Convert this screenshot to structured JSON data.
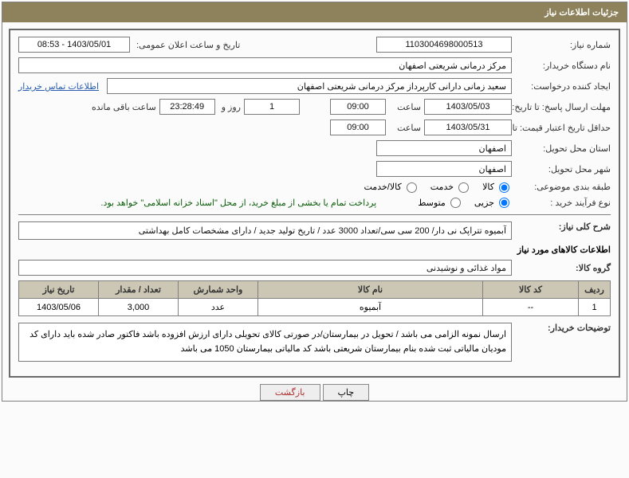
{
  "header": {
    "title": "جزئیات اطلاعات نیاز"
  },
  "fields": {
    "need_number_label": "شماره نیاز:",
    "need_number": "1103004698000513",
    "announce_label": "تاریخ و ساعت اعلان عمومی:",
    "announce_value": "1403/05/01 - 08:53",
    "buyer_org_label": "نام دستگاه خریدار:",
    "buyer_org": "مرکز درمانی شریعتی اصفهان",
    "requester_label": "ایجاد کننده درخواست:",
    "requester": "سعید زمانی دارانی کارپرداز مرکز درمانی شریعتی اصفهان",
    "contact_link": "اطلاعات تماس خریدار",
    "deadline_reply_label": "مهلت ارسال پاسخ: تا تاریخ:",
    "deadline_reply_date": "1403/05/03",
    "time_label": "ساعت",
    "deadline_reply_time": "09:00",
    "days_value": "1",
    "days_and_label": "روز و",
    "countdown": "23:28:49",
    "remaining_label": "ساعت باقی مانده",
    "min_validity_label": "حداقل تاریخ اعتبار قیمت: تا تاریخ:",
    "min_validity_date": "1403/05/31",
    "min_validity_time": "09:00",
    "delivery_province_label": "استان محل تحویل:",
    "delivery_province": "اصفهان",
    "delivery_city_label": "شهر محل تحویل:",
    "delivery_city": "اصفهان",
    "subject_class_label": "طبقه بندی موضوعی:",
    "purchase_type_label": "نوع فرآیند خرید :",
    "payment_note": "پرداخت تمام یا بخشی از مبلغ خرید، از محل \"اسناد خزانه اسلامی\" خواهد بود."
  },
  "radios": {
    "subject": {
      "options": [
        {
          "label": "کالا",
          "checked": true
        },
        {
          "label": "خدمت",
          "checked": false
        },
        {
          "label": "کالا/خدمت",
          "checked": false
        }
      ]
    },
    "purchase": {
      "options": [
        {
          "label": "جزیی",
          "checked": true
        },
        {
          "label": "متوسط",
          "checked": false
        }
      ]
    }
  },
  "general_desc": {
    "label": "شرح کلی نیاز:",
    "text": "آبمیوه تتراپک نی دار/ 200 سی سی/تعداد 3000 عدد / تاریخ تولید جدید / دارای مشخصات کامل بهداشتی"
  },
  "goods_section_title": "اطلاعات کالاهای مورد نیاز",
  "goods_group_label": "گروه کالا:",
  "goods_group": "مواد غذائی و نوشیدنی",
  "table": {
    "headers": [
      "ردیف",
      "کد کالا",
      "نام کالا",
      "واحد شمارش",
      "تعداد / مقدار",
      "تاریخ نیاز"
    ],
    "col_widths": [
      "40px",
      "120px",
      "auto",
      "100px",
      "100px",
      "100px"
    ],
    "rows": [
      [
        "1",
        "--",
        "آبمیوه",
        "عدد",
        "3,000",
        "1403/05/06"
      ]
    ]
  },
  "buyer_notes": {
    "label": "توضیحات خریدار:",
    "text": "ارسال نمونه الزامی می باشد / تحویل در بیمارستان/در صورتی کالای تحویلی دارای ارزش افزوده باشد فاکتور صادر شده باید دارای کد مودیان مالیاتی ثبت شده بنام بیمارستان شریعتی باشد کد مالیاتی بیمارستان  1050 می باشد"
  },
  "buttons": {
    "print": "چاپ",
    "back": "بازگشت"
  },
  "colors": {
    "header_bg": "#8d825b",
    "border": "#6a6a6a",
    "th_bg": "#ccc7b5",
    "link": "#2a5db0",
    "note_green": "#0a5e0a"
  }
}
